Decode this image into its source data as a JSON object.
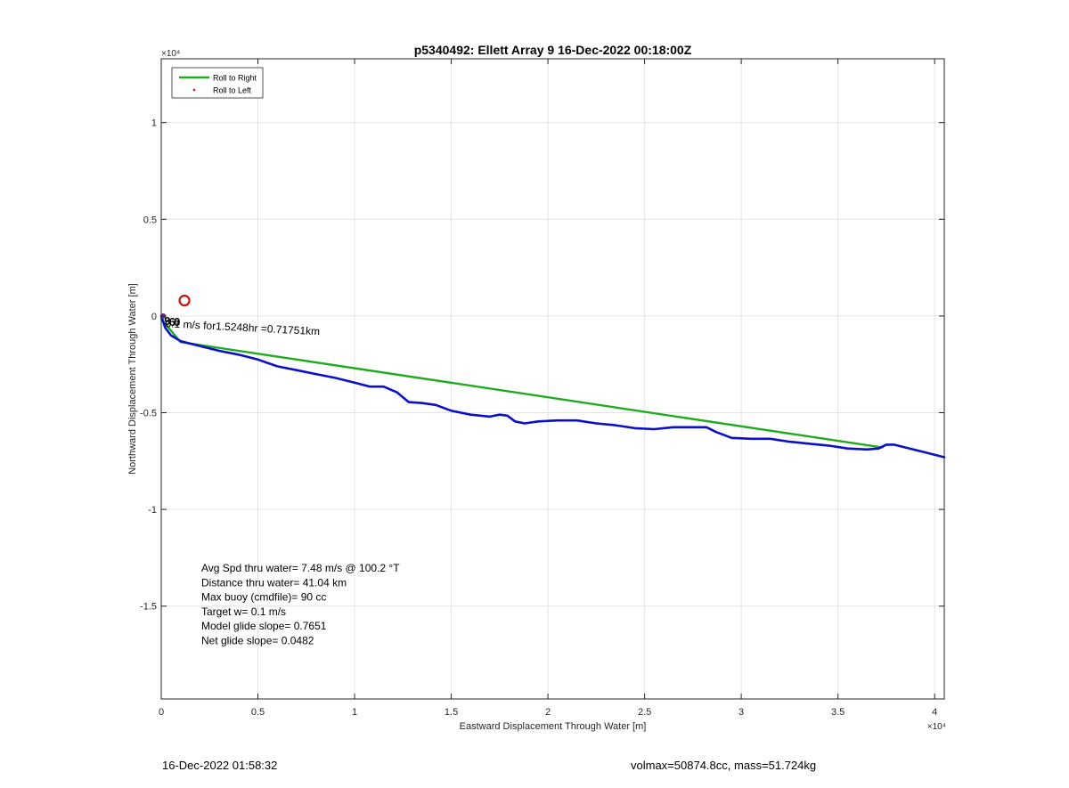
{
  "chart_data": {
    "type": "line",
    "title": "p5340492: Ellett Array 9 16-Dec-2022 00:18:00Z",
    "xlabel": "Eastward Displacement Through Water [m]",
    "ylabel": "Northward Displacement Through Water [m]",
    "xlim": [
      0,
      40500
    ],
    "ylim": [
      -19800,
      13300
    ],
    "x_exponent_label": "×10⁴",
    "y_exponent_label": "×10⁴",
    "x_ticks": [
      {
        "value": 0,
        "label": "0"
      },
      {
        "value": 5000,
        "label": "0.5"
      },
      {
        "value": 10000,
        "label": "1"
      },
      {
        "value": 15000,
        "label": "1.5"
      },
      {
        "value": 20000,
        "label": "2"
      },
      {
        "value": 25000,
        "label": "2.5"
      },
      {
        "value": 30000,
        "label": "3"
      },
      {
        "value": 35000,
        "label": "3.5"
      },
      {
        "value": 40000,
        "label": "4"
      }
    ],
    "y_ticks": [
      {
        "value": 10000,
        "label": "1"
      },
      {
        "value": 5000,
        "label": "0.5"
      },
      {
        "value": 0,
        "label": "0"
      },
      {
        "value": -5000,
        "label": "-0.5"
      },
      {
        "value": -10000,
        "label": "-1"
      },
      {
        "value": -15000,
        "label": "-1.5"
      }
    ],
    "grid": true,
    "legend_position": "top-left",
    "series": [
      {
        "name": "Roll to Right",
        "color": "#1faa1f",
        "style": "line",
        "x": [
          0,
          1000,
          37300
        ],
        "y": [
          -150,
          -1350,
          -6800
        ]
      },
      {
        "name": "Roll to Left",
        "color": "#e01010",
        "style": "points",
        "x": [],
        "y": []
      },
      {
        "name": "",
        "color": "#0a10c8",
        "style": "line",
        "x": [
          0,
          200,
          500,
          1000,
          2000,
          3000,
          4000,
          5000,
          6000,
          7000,
          8000,
          9000,
          10000,
          10800,
          11500,
          12200,
          12800,
          13500,
          14200,
          15000,
          16000,
          17000,
          17500,
          17900,
          18300,
          18800,
          19500,
          20500,
          21500,
          22500,
          23500,
          24500,
          25500,
          26500,
          27500,
          28200,
          28700,
          29500,
          30500,
          31500,
          32500,
          33500,
          34500,
          35500,
          36500,
          37100,
          37500,
          37900,
          38500,
          39500,
          40500
        ],
        "y": [
          0,
          -600,
          -1000,
          -1300,
          -1550,
          -1800,
          -2000,
          -2250,
          -2600,
          -2800,
          -3000,
          -3200,
          -3450,
          -3650,
          -3650,
          -3950,
          -4450,
          -4500,
          -4600,
          -4900,
          -5100,
          -5200,
          -5100,
          -5150,
          -5450,
          -5550,
          -5450,
          -5400,
          -5400,
          -5550,
          -5650,
          -5800,
          -5850,
          -5750,
          -5750,
          -5750,
          -6000,
          -6300,
          -6350,
          -6350,
          -6500,
          -6600,
          -6700,
          -6850,
          -6900,
          -6850,
          -6650,
          -6650,
          -6800,
          -7050,
          -7300
        ]
      }
    ],
    "annotations": [
      {
        "text": "0.1 m/s for1.5248hr =0.71751km",
        "x": 200,
        "y": -200,
        "rotation": 3
      },
      {
        "text": "9",
        "x": 150,
        "y": -100
      },
      {
        "text": "6",
        "x": 400,
        "y": -150
      },
      {
        "text": "0",
        "x": 650,
        "y": -150
      }
    ],
    "markers": [
      {
        "name": "target-circle",
        "x": 1200,
        "y": 800,
        "color": "#cc1111"
      },
      {
        "name": "start-marker",
        "x": 100,
        "y": 0,
        "color": "#6a2a8a"
      }
    ],
    "stats_text": [
      "Avg Spd thru water=  7.48 m/s @ 100.2 °T",
      "Distance thru water= 41.04 km",
      "Max buoy (cmdfile)= 90 cc",
      "Target w= 0.1 m/s",
      "Model glide slope= 0.7651",
      "Net glide slope= 0.0482"
    ]
  },
  "footer": {
    "left": "16-Dec-2022 01:58:32",
    "right": "volmax=50874.8cc, mass=51.724kg"
  }
}
